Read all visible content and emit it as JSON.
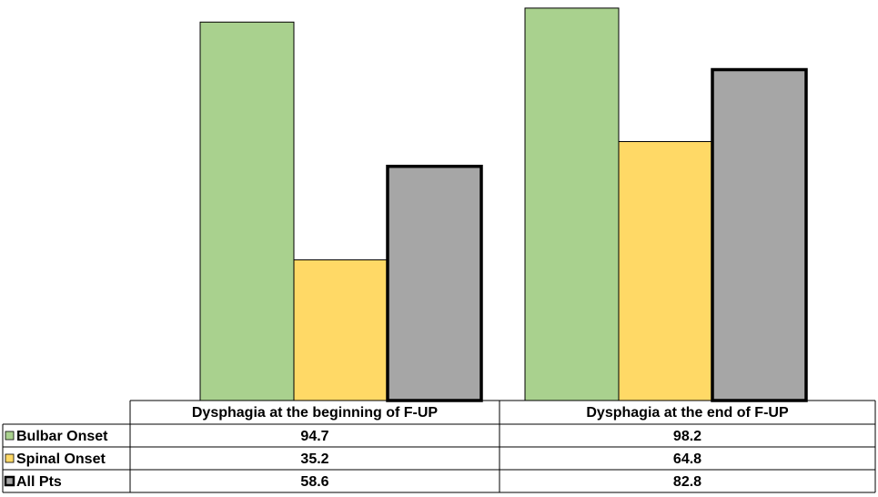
{
  "chart_data": {
    "type": "bar",
    "categories": [
      "Dysphagia at the beginning of F-UP",
      "Dysphagia at the end of F-UP"
    ],
    "series": [
      {
        "name": "Bulbar Onset",
        "values": [
          94.7,
          98.2
        ],
        "color": "#a9d18e",
        "stroke": "#000000",
        "strong_border": false
      },
      {
        "name": "Spinal Onset",
        "values": [
          35.2,
          64.8
        ],
        "color": "#ffd966",
        "stroke": "#000000",
        "strong_border": false
      },
      {
        "name": "All Pts",
        "values": [
          58.6,
          82.8
        ],
        "color": "#a6a6a6",
        "stroke": "#000000",
        "strong_border": true
      }
    ],
    "table_values": [
      [
        "94.7",
        "98.2"
      ],
      [
        "35.2",
        "64.8"
      ],
      [
        "58.6",
        "82.8"
      ]
    ],
    "ylim": [
      0,
      100
    ],
    "grid": false,
    "legend": "data table rows at bottom-left",
    "title": "",
    "xlabel": "",
    "ylabel": ""
  }
}
